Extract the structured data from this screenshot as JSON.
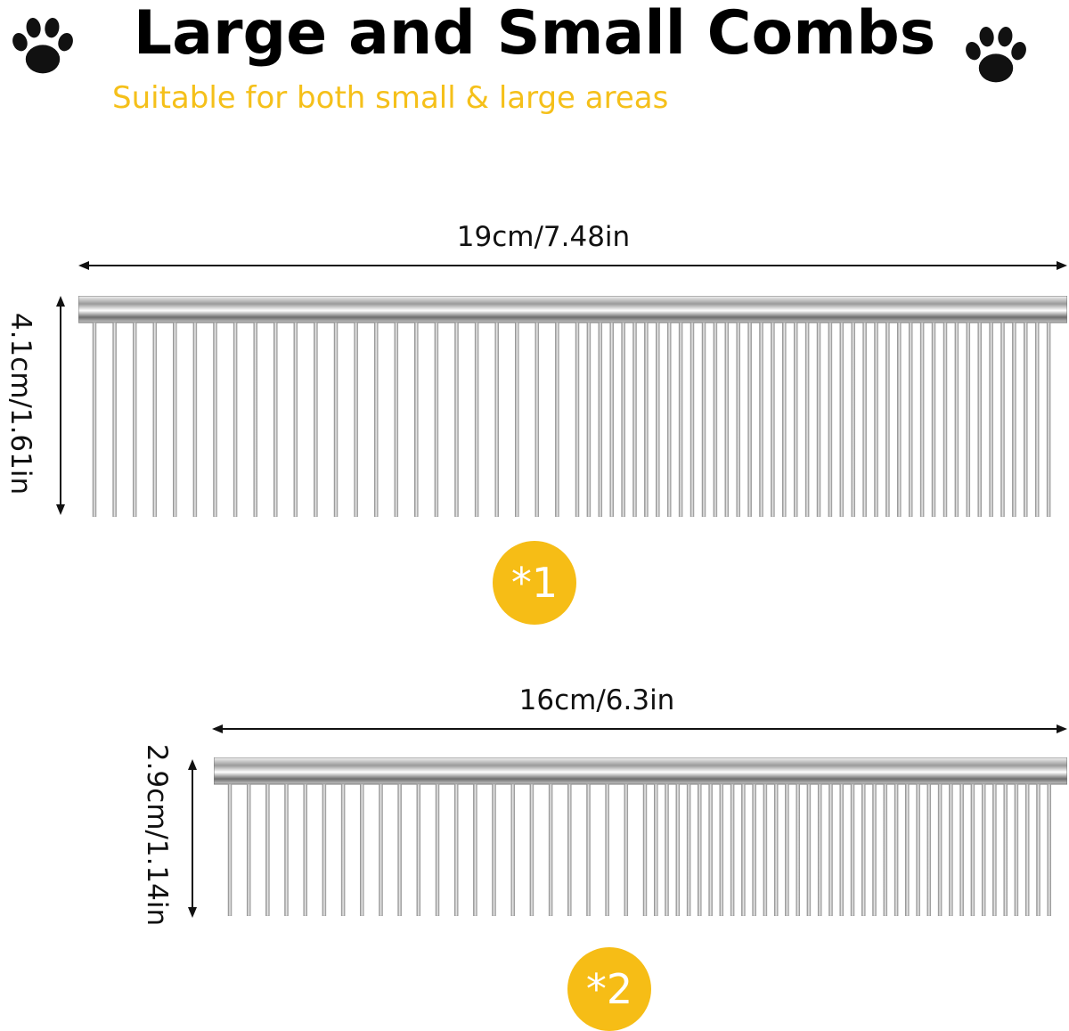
{
  "header": {
    "title": "Large and Small Combs",
    "subtitle": "Suitable for both small & large areas"
  },
  "colors": {
    "accent": "#F5C01A",
    "badge": "#F6BD16",
    "text": "#111111"
  },
  "icons": {
    "left_paw": "paw-print-icon",
    "right_paw": "paw-print-icon"
  },
  "comb_large": {
    "width_label": "19cm/7.48in",
    "height_label": "4.1cm/1.61in",
    "badge": "*1"
  },
  "comb_small": {
    "width_label": "16cm/6.3in",
    "height_label": "2.9cm/1.14in",
    "badge": "*2"
  }
}
